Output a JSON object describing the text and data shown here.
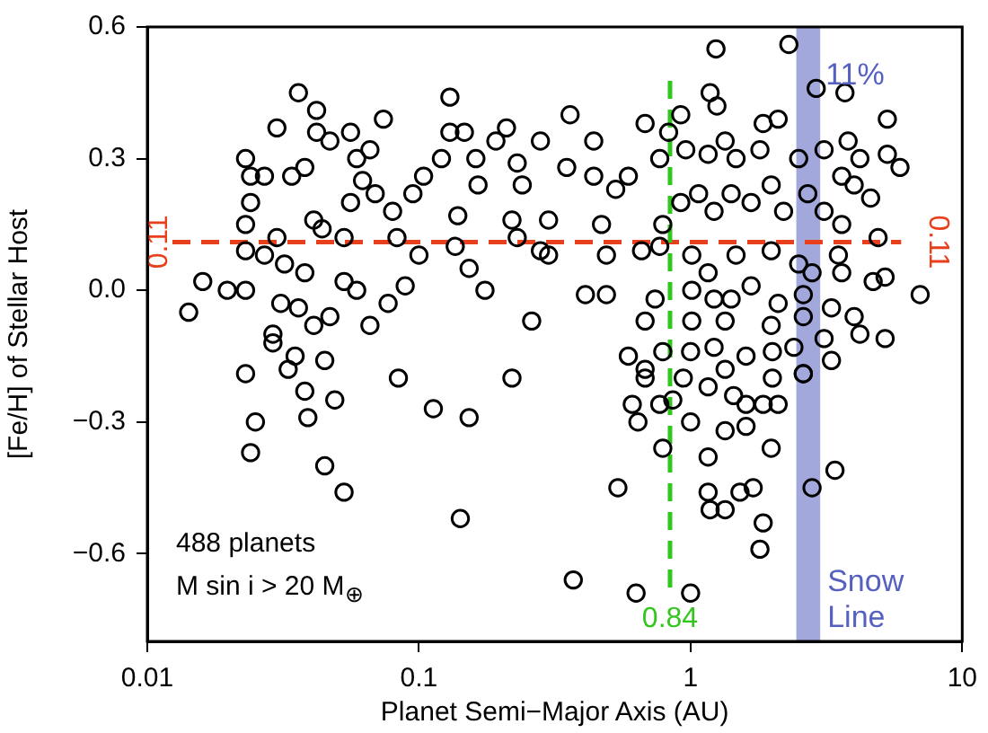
{
  "chart_data": {
    "type": "scatter",
    "xlabel": "Planet Semi−Major Axis (AU)",
    "ylabel": "[Fe/H] of Stellar Host",
    "log": "x",
    "grid": false,
    "legend": false,
    "marker": "circle",
    "xlim": [
      0.01,
      10
    ],
    "xticks": [
      0.01,
      0.1,
      1,
      10
    ],
    "ylim": [
      -0.8,
      0.6
    ],
    "yticks": [
      {
        "value": -0.6,
        "label": "−0.6"
      },
      {
        "value": -0.3,
        "label": "−0.3"
      },
      {
        "value": 0,
        "label": "0.0"
      },
      {
        "value": 0.3,
        "label": "0.3"
      },
      {
        "value": 0.6,
        "label": "0.6"
      }
    ],
    "ref_lines": [
      {
        "axis": "y",
        "value": 0.11,
        "label": "0.11",
        "color": "#e8401c",
        "line_style": "dashed"
      },
      {
        "axis": "x",
        "value": 0.84,
        "label": "0.84",
        "color": "#33c61e",
        "line_style": "dashed"
      }
    ],
    "bands": [
      {
        "axis": "x",
        "from": 2.45,
        "to": 3.0,
        "label": "Snow Line",
        "color": "#5560c0"
      }
    ],
    "annotations": [
      "488 planets",
      "M sin i > 20 M$_{⊕}$",
      "11%"
    ],
    "series": [
      {
        "color": "#000000",
        "x": [
          0.036,
          0.042,
          0.03,
          0.023,
          0.024,
          0.027,
          0.024,
          0.023,
          0.023,
          0.016,
          0.0142,
          0.0197,
          0.023,
          0.027,
          0.03,
          0.034,
          0.038,
          0.042,
          0.047,
          0.056,
          0.059,
          0.066,
          0.074,
          0.062,
          0.041,
          0.044,
          0.053,
          0.056,
          0.069,
          0.08,
          0.083,
          0.1,
          0.089,
          0.077,
          0.066,
          0.038,
          0.032,
          0.031,
          0.036,
          0.047,
          0.053,
          0.059,
          0.041,
          0.029,
          0.029,
          0.035,
          0.033,
          0.045,
          0.023,
          0.084,
          0.095,
          0.104,
          0.121,
          0.13,
          0.13,
          0.147,
          0.139,
          0.136,
          0.153,
          0.165,
          0.162,
          0.175,
          0.192,
          0.21,
          0.23,
          0.24,
          0.22,
          0.23,
          0.26,
          0.28,
          0.3,
          0.3,
          0.22,
          0.025,
          0.024,
          0.039,
          0.045,
          0.053,
          0.049,
          0.038,
          0.113,
          0.153,
          0.142,
          1.24,
          2.3,
          2.9,
          3.7,
          1.18,
          1.25,
          0.36,
          0.68,
          0.44,
          5.3,
          5.3,
          3.8,
          1.85,
          2.1,
          1.34,
          0.83,
          0.92,
          0.35,
          0.44,
          0.59,
          0.53,
          0.77,
          0.96,
          1.16,
          1.47,
          1.8,
          2.5,
          3.1,
          4.2,
          5.9,
          3.6,
          4.0,
          4.6,
          0.47,
          0.79,
          0.92,
          1.07,
          1.22,
          1.41,
          1.67,
          1.98,
          2.2,
          2.7,
          3.1,
          3.6,
          4.9,
          0.28,
          0.49,
          0.77,
          0.66,
          1.01,
          1.16,
          1.47,
          1.98,
          2.5,
          2.8,
          3.5,
          3.6,
          4.7,
          5.2,
          7.0,
          0.41,
          0.49,
          0.74,
          1.01,
          1.22,
          1.41,
          1.67,
          2.1,
          2.6,
          3.3,
          4.0,
          0.68,
          1.01,
          1.34,
          1.98,
          2.6,
          3.1,
          4.2,
          5.2,
          0.59,
          0.79,
          1.0,
          1.22,
          1.6,
          2.0,
          2.4,
          2.6,
          0.68,
          1.34,
          0.68,
          0.61,
          0.64,
          0.77,
          0.86,
          0.79,
          1.0,
          0.94,
          1.16,
          1.44,
          1.6,
          1.85,
          2.1,
          2.0,
          1.16,
          1.34,
          1.6,
          1.98,
          1.16,
          1.34,
          1.18,
          1.52,
          1.7,
          1.85,
          1.8,
          0.54,
          3.4,
          2.8,
          2.6,
          0.37,
          0.63,
          1.0,
          3.3
        ],
        "values": [
          0.45,
          0.41,
          0.37,
          0.3,
          0.26,
          0.26,
          0.2,
          0.15,
          0.09,
          0.02,
          -0.05,
          0.0,
          0.0,
          0.08,
          0.12,
          0.26,
          0.28,
          0.36,
          0.34,
          0.36,
          0.3,
          0.32,
          0.39,
          0.25,
          0.16,
          0.14,
          0.12,
          0.2,
          0.22,
          0.18,
          0.12,
          0.08,
          0.01,
          -0.03,
          -0.08,
          0.04,
          0.06,
          -0.03,
          -0.04,
          -0.06,
          0.02,
          0.0,
          -0.08,
          -0.1,
          -0.12,
          -0.15,
          -0.18,
          -0.16,
          -0.19,
          -0.2,
          0.22,
          0.26,
          0.3,
          0.36,
          0.44,
          0.36,
          0.17,
          0.1,
          0.05,
          0.24,
          0.3,
          0.0,
          0.34,
          0.37,
          0.29,
          0.24,
          0.16,
          0.12,
          -0.07,
          0.34,
          0.08,
          0.16,
          -0.2,
          -0.3,
          -0.37,
          -0.29,
          -0.4,
          -0.46,
          -0.25,
          -0.23,
          -0.27,
          -0.29,
          -0.52,
          0.55,
          0.56,
          0.46,
          0.45,
          0.45,
          0.42,
          0.4,
          0.38,
          0.34,
          0.39,
          0.31,
          0.34,
          0.38,
          0.39,
          0.34,
          0.36,
          0.4,
          0.28,
          0.26,
          0.26,
          0.23,
          0.3,
          0.32,
          0.31,
          0.3,
          0.32,
          0.3,
          0.32,
          0.3,
          0.28,
          0.26,
          0.24,
          0.21,
          0.15,
          0.15,
          0.2,
          0.22,
          0.18,
          0.22,
          0.2,
          0.24,
          0.18,
          0.22,
          0.18,
          0.15,
          0.12,
          0.09,
          0.08,
          0.1,
          0.09,
          0.08,
          0.04,
          0.08,
          0.09,
          0.06,
          0.04,
          0.08,
          0.04,
          0.02,
          0.03,
          -0.01,
          -0.01,
          -0.01,
          -0.02,
          0.0,
          -0.02,
          -0.02,
          0.01,
          -0.03,
          -0.01,
          -0.04,
          -0.06,
          -0.07,
          -0.07,
          -0.07,
          -0.08,
          -0.06,
          -0.11,
          -0.1,
          -0.11,
          -0.15,
          -0.14,
          -0.14,
          -0.13,
          -0.15,
          -0.14,
          -0.13,
          -0.19,
          -0.18,
          -0.18,
          -0.2,
          -0.26,
          -0.3,
          -0.26,
          -0.25,
          -0.36,
          -0.3,
          -0.2,
          -0.22,
          -0.24,
          -0.26,
          -0.26,
          -0.26,
          -0.2,
          -0.38,
          -0.32,
          -0.31,
          -0.36,
          -0.46,
          -0.5,
          -0.5,
          -0.46,
          -0.45,
          -0.53,
          -0.59,
          -0.45,
          -0.41,
          -0.45,
          -0.19,
          -0.66,
          -0.69,
          -0.69,
          -0.16
        ]
      }
    ]
  }
}
